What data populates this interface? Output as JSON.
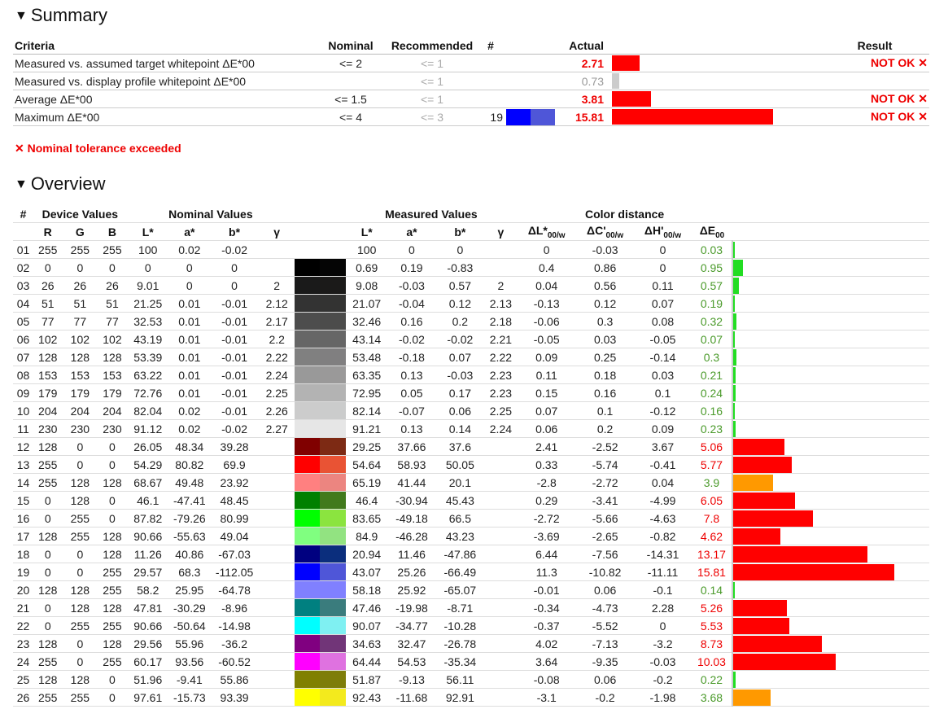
{
  "summary": {
    "title": "Summary",
    "headers": {
      "criteria": "Criteria",
      "nominal": "Nominal",
      "recommended": "Recommended",
      "count": "#",
      "actual": "Actual",
      "result": "Result"
    },
    "rows": [
      {
        "criteria": "Measured vs. assumed target whitepoint ΔE*00",
        "nominal": "<= 2",
        "recommended": "<= 1",
        "count": "",
        "actual": "2.71",
        "actual_class": "bad",
        "bar_fraction": 0.171,
        "bar_color": "#ff0000",
        "result": "NOT OK ✕"
      },
      {
        "criteria": "Measured vs. display profile whitepoint ΔE*00",
        "nominal": "",
        "recommended": "<= 1",
        "count": "",
        "actual": "0.73",
        "actual_class": "gray",
        "bar_fraction": 0.046,
        "bar_color": "#cccccc",
        "result": ""
      },
      {
        "criteria": "Average ΔE*00",
        "nominal": "<= 1.5",
        "recommended": "<= 1",
        "count": "",
        "actual": "3.81",
        "actual_class": "bad",
        "bar_fraction": 0.241,
        "bar_color": "#ff0000",
        "result": "NOT OK ✕"
      },
      {
        "criteria": "Maximum ΔE*00",
        "nominal": "<= 4",
        "recommended": "<= 3",
        "count": "19",
        "swatch_a": "#0000ff",
        "swatch_b": "#4f56d8",
        "actual": "15.81",
        "actual_class": "bad",
        "bar_fraction": 1.0,
        "bar_color": "#ff0000",
        "result": "NOT OK ✕"
      }
    ],
    "tolerance_note": "✕ Nominal tolerance exceeded"
  },
  "overview": {
    "title": "Overview",
    "group_headers": {
      "num": "#",
      "device": "Device Values",
      "nominal": "Nominal Values",
      "measured": "Measured Values",
      "distance": "Color distance"
    },
    "col_headers": {
      "r": "R",
      "g": "G",
      "b": "B",
      "L": "L*",
      "a": "a*",
      "bb": "b*",
      "gamma": "γ",
      "mL": "L*",
      "ma": "a*",
      "mb": "b*",
      "mgamma": "γ",
      "dL": "ΔL*",
      "dC": "ΔC'",
      "dH": "ΔH'",
      "dE": "ΔE",
      "sub_w": "00/w",
      "sub_00": "00"
    },
    "rows": [
      {
        "n": "01",
        "r": "255",
        "g": "255",
        "b": "255",
        "L": "100",
        "a": "0.02",
        "bb": "-0.02",
        "gamma": "",
        "nc": "#ffffff",
        "mc": "#ffffff",
        "mL": "100",
        "ma": "0",
        "mb": "0",
        "mgamma": "",
        "dL": "0",
        "dC": "-0.03",
        "dH": "0",
        "dE": "0.03",
        "dEval": 0.03,
        "dEcls": "okish"
      },
      {
        "n": "02",
        "r": "0",
        "g": "0",
        "b": "0",
        "L": "0",
        "a": "0",
        "bb": "0",
        "gamma": "",
        "nc": "#000000",
        "mc": "#050505",
        "mL": "0.69",
        "ma": "0.19",
        "mb": "-0.83",
        "mgamma": "",
        "dL": "0.4",
        "dC": "0.86",
        "dH": "0",
        "dE": "0.95",
        "dEval": 0.95,
        "dEcls": "okish"
      },
      {
        "n": "03",
        "r": "26",
        "g": "26",
        "b": "26",
        "L": "9.01",
        "a": "0",
        "bb": "0",
        "gamma": "2",
        "nc": "#1a1a1a",
        "mc": "#1b1a19",
        "mL": "9.08",
        "ma": "-0.03",
        "mb": "0.57",
        "mgamma": "2",
        "dL": "0.04",
        "dC": "0.56",
        "dH": "0.11",
        "dE": "0.57",
        "dEval": 0.57,
        "dEcls": "okish"
      },
      {
        "n": "04",
        "r": "51",
        "g": "51",
        "b": "51",
        "L": "21.25",
        "a": "0.01",
        "bb": "-0.01",
        "gamma": "2.12",
        "nc": "#333333",
        "mc": "#333332",
        "mL": "21.07",
        "ma": "-0.04",
        "mb": "0.12",
        "mgamma": "2.13",
        "dL": "-0.13",
        "dC": "0.12",
        "dH": "0.07",
        "dE": "0.19",
        "dEval": 0.19,
        "dEcls": "okish"
      },
      {
        "n": "05",
        "r": "77",
        "g": "77",
        "b": "77",
        "L": "32.53",
        "a": "0.01",
        "bb": "-0.01",
        "gamma": "2.17",
        "nc": "#4d4d4d",
        "mc": "#4c4c4b",
        "mL": "32.46",
        "ma": "0.16",
        "mb": "0.2",
        "mgamma": "2.18",
        "dL": "-0.06",
        "dC": "0.3",
        "dH": "0.08",
        "dE": "0.32",
        "dEval": 0.32,
        "dEcls": "okish"
      },
      {
        "n": "06",
        "r": "102",
        "g": "102",
        "b": "102",
        "L": "43.19",
        "a": "0.01",
        "bb": "-0.01",
        "gamma": "2.2",
        "nc": "#666666",
        "mc": "#666666",
        "mL": "43.14",
        "ma": "-0.02",
        "mb": "-0.02",
        "mgamma": "2.21",
        "dL": "-0.05",
        "dC": "0.03",
        "dH": "-0.05",
        "dE": "0.07",
        "dEval": 0.07,
        "dEcls": "okish"
      },
      {
        "n": "07",
        "r": "128",
        "g": "128",
        "b": "128",
        "L": "53.39",
        "a": "0.01",
        "bb": "-0.01",
        "gamma": "2.22",
        "nc": "#808080",
        "mc": "#807f80",
        "mL": "53.48",
        "ma": "-0.18",
        "mb": "0.07",
        "mgamma": "2.22",
        "dL": "0.09",
        "dC": "0.25",
        "dH": "-0.14",
        "dE": "0.3",
        "dEval": 0.3,
        "dEcls": "okish"
      },
      {
        "n": "08",
        "r": "153",
        "g": "153",
        "b": "153",
        "L": "63.22",
        "a": "0.01",
        "bb": "-0.01",
        "gamma": "2.24",
        "nc": "#999999",
        "mc": "#9a9999",
        "mL": "63.35",
        "ma": "0.13",
        "mb": "-0.03",
        "mgamma": "2.23",
        "dL": "0.11",
        "dC": "0.18",
        "dH": "0.03",
        "dE": "0.21",
        "dEval": 0.21,
        "dEcls": "okish"
      },
      {
        "n": "09",
        "r": "179",
        "g": "179",
        "b": "179",
        "L": "72.76",
        "a": "0.01",
        "bb": "-0.01",
        "gamma": "2.25",
        "nc": "#b3b3b3",
        "mc": "#b3b3b3",
        "mL": "72.95",
        "ma": "0.05",
        "mb": "0.17",
        "mgamma": "2.23",
        "dL": "0.15",
        "dC": "0.16",
        "dH": "0.1",
        "dE": "0.24",
        "dEval": 0.24,
        "dEcls": "okish"
      },
      {
        "n": "10",
        "r": "204",
        "g": "204",
        "b": "204",
        "L": "82.04",
        "a": "0.02",
        "bb": "-0.01",
        "gamma": "2.26",
        "nc": "#cccccc",
        "mc": "#cbcccc",
        "mL": "82.14",
        "ma": "-0.07",
        "mb": "0.06",
        "mgamma": "2.25",
        "dL": "0.07",
        "dC": "0.1",
        "dH": "-0.12",
        "dE": "0.16",
        "dEval": 0.16,
        "dEcls": "okish"
      },
      {
        "n": "11",
        "r": "230",
        "g": "230",
        "b": "230",
        "L": "91.12",
        "a": "0.02",
        "bb": "-0.02",
        "gamma": "2.27",
        "nc": "#e6e6e6",
        "mc": "#e6e6e6",
        "mL": "91.21",
        "ma": "0.13",
        "mb": "0.14",
        "mgamma": "2.24",
        "dL": "0.06",
        "dC": "0.2",
        "dH": "0.09",
        "dE": "0.23",
        "dEval": 0.23,
        "dEcls": "okish"
      },
      {
        "n": "12",
        "r": "128",
        "g": "0",
        "b": "0",
        "L": "26.05",
        "a": "48.34",
        "bb": "39.28",
        "gamma": "",
        "nc": "#800000",
        "mc": "#7d2a14",
        "mL": "29.25",
        "ma": "37.66",
        "mb": "37.6",
        "mgamma": "",
        "dL": "2.41",
        "dC": "-2.52",
        "dH": "3.67",
        "dE": "5.06",
        "dEval": 5.06,
        "dEcls": "bad"
      },
      {
        "n": "13",
        "r": "255",
        "g": "0",
        "b": "0",
        "L": "54.29",
        "a": "80.82",
        "bb": "69.9",
        "gamma": "",
        "nc": "#ff0000",
        "mc": "#e95334",
        "mL": "54.64",
        "ma": "58.93",
        "mb": "50.05",
        "mgamma": "",
        "dL": "0.33",
        "dC": "-5.74",
        "dH": "-0.41",
        "dE": "5.77",
        "dEval": 5.77,
        "dEcls": "bad"
      },
      {
        "n": "14",
        "r": "255",
        "g": "128",
        "b": "128",
        "L": "68.67",
        "a": "49.48",
        "bb": "23.92",
        "gamma": "",
        "nc": "#ff8080",
        "mc": "#ec8580",
        "mL": "65.19",
        "ma": "41.44",
        "mb": "20.1",
        "mgamma": "",
        "dL": "-2.8",
        "dC": "-2.72",
        "dH": "0.04",
        "dE": "3.9",
        "dEval": 3.9,
        "dEcls": "okish"
      },
      {
        "n": "15",
        "r": "0",
        "g": "128",
        "b": "0",
        "L": "46.1",
        "a": "-47.41",
        "bb": "48.45",
        "gamma": "",
        "nc": "#008000",
        "mc": "#417a1c",
        "mL": "46.4",
        "ma": "-30.94",
        "mb": "45.43",
        "mgamma": "",
        "dL": "0.29",
        "dC": "-3.41",
        "dH": "-4.99",
        "dE": "6.05",
        "dEval": 6.05,
        "dEcls": "bad"
      },
      {
        "n": "16",
        "r": "0",
        "g": "255",
        "b": "0",
        "L": "87.82",
        "a": "-79.26",
        "bb": "80.99",
        "gamma": "",
        "nc": "#00ff00",
        "mc": "#8be43f",
        "mL": "83.65",
        "ma": "-49.18",
        "mb": "66.5",
        "mgamma": "",
        "dL": "-2.72",
        "dC": "-5.66",
        "dH": "-4.63",
        "dE": "7.8",
        "dEval": 7.8,
        "dEcls": "bad"
      },
      {
        "n": "17",
        "r": "128",
        "g": "255",
        "b": "128",
        "L": "90.66",
        "a": "-55.63",
        "bb": "49.04",
        "gamma": "",
        "nc": "#80ff80",
        "mc": "#92e381",
        "mL": "84.9",
        "ma": "-46.28",
        "mb": "43.23",
        "mgamma": "",
        "dL": "-3.69",
        "dC": "-2.65",
        "dH": "-0.82",
        "dE": "4.62",
        "dEval": 4.62,
        "dEcls": "bad"
      },
      {
        "n": "18",
        "r": "0",
        "g": "0",
        "b": "128",
        "L": "11.26",
        "a": "40.86",
        "bb": "-67.03",
        "gamma": "",
        "nc": "#000080",
        "mc": "#0b2e7d",
        "mL": "20.94",
        "ma": "11.46",
        "mb": "-47.86",
        "mgamma": "",
        "dL": "6.44",
        "dC": "-7.56",
        "dH": "-14.31",
        "dE": "13.17",
        "dEval": 13.17,
        "dEcls": "bad"
      },
      {
        "n": "19",
        "r": "0",
        "g": "0",
        "b": "255",
        "L": "29.57",
        "a": "68.3",
        "bb": "-112.05",
        "gamma": "",
        "nc": "#0000ff",
        "mc": "#4f56d8",
        "mL": "43.07",
        "ma": "25.26",
        "mb": "-66.49",
        "mgamma": "",
        "dL": "11.3",
        "dC": "-10.82",
        "dH": "-11.11",
        "dE": "15.81",
        "dEval": 15.81,
        "dEcls": "bad"
      },
      {
        "n": "20",
        "r": "128",
        "g": "128",
        "b": "255",
        "L": "58.2",
        "a": "25.95",
        "bb": "-64.78",
        "gamma": "",
        "nc": "#8080ff",
        "mc": "#8080ff",
        "mL": "58.18",
        "ma": "25.92",
        "mb": "-65.07",
        "mgamma": "",
        "dL": "-0.01",
        "dC": "0.06",
        "dH": "-0.1",
        "dE": "0.14",
        "dEval": 0.14,
        "dEcls": "okish"
      },
      {
        "n": "21",
        "r": "0",
        "g": "128",
        "b": "128",
        "L": "47.81",
        "a": "-30.29",
        "bb": "-8.96",
        "gamma": "",
        "nc": "#008080",
        "mc": "#3a7c7d",
        "mL": "47.46",
        "ma": "-19.98",
        "mb": "-8.71",
        "mgamma": "",
        "dL": "-0.34",
        "dC": "-4.73",
        "dH": "2.28",
        "dE": "5.26",
        "dEval": 5.26,
        "dEcls": "bad"
      },
      {
        "n": "22",
        "r": "0",
        "g": "255",
        "b": "255",
        "L": "90.66",
        "a": "-50.64",
        "bb": "-14.98",
        "gamma": "",
        "nc": "#00ffff",
        "mc": "#7ff0f2",
        "mL": "90.07",
        "ma": "-34.77",
        "mb": "-10.28",
        "mgamma": "",
        "dL": "-0.37",
        "dC": "-5.52",
        "dH": "0",
        "dE": "5.53",
        "dEval": 5.53,
        "dEcls": "bad"
      },
      {
        "n": "23",
        "r": "128",
        "g": "0",
        "b": "128",
        "L": "29.56",
        "a": "55.96",
        "bb": "-36.2",
        "gamma": "",
        "nc": "#800080",
        "mc": "#713578",
        "mL": "34.63",
        "ma": "32.47",
        "mb": "-26.78",
        "mgamma": "",
        "dL": "4.02",
        "dC": "-7.13",
        "dH": "-3.2",
        "dE": "8.73",
        "dEval": 8.73,
        "dEcls": "bad"
      },
      {
        "n": "24",
        "r": "255",
        "g": "0",
        "b": "255",
        "L": "60.17",
        "a": "93.56",
        "bb": "-60.52",
        "gamma": "",
        "nc": "#ff00ff",
        "mc": "#df72e0",
        "mL": "64.44",
        "ma": "54.53",
        "mb": "-35.34",
        "mgamma": "",
        "dL": "3.64",
        "dC": "-9.35",
        "dH": "-0.03",
        "dE": "10.03",
        "dEval": 10.03,
        "dEcls": "bad"
      },
      {
        "n": "25",
        "r": "128",
        "g": "128",
        "b": "0",
        "L": "51.96",
        "a": "-9.41",
        "bb": "55.86",
        "gamma": "",
        "nc": "#808000",
        "mc": "#7e7d09",
        "mL": "51.87",
        "ma": "-9.13",
        "mb": "56.11",
        "mgamma": "",
        "dL": "-0.08",
        "dC": "0.06",
        "dH": "-0.2",
        "dE": "0.22",
        "dEval": 0.22,
        "dEcls": "okish"
      },
      {
        "n": "26",
        "r": "255",
        "g": "255",
        "b": "0",
        "L": "97.61",
        "a": "-15.73",
        "bb": "93.39",
        "gamma": "",
        "nc": "#ffff00",
        "mc": "#f3ea1d",
        "mL": "92.43",
        "ma": "-11.68",
        "mb": "92.91",
        "mgamma": "",
        "dL": "-3.1",
        "dC": "-0.2",
        "dH": "-1.98",
        "dE": "3.68",
        "dEval": 3.68,
        "dEcls": "okish"
      }
    ],
    "bar_scale_max": 15.81,
    "colors": {
      "ok": "#22dd22",
      "warn": "#ff9900",
      "bad": "#ff0000"
    }
  }
}
